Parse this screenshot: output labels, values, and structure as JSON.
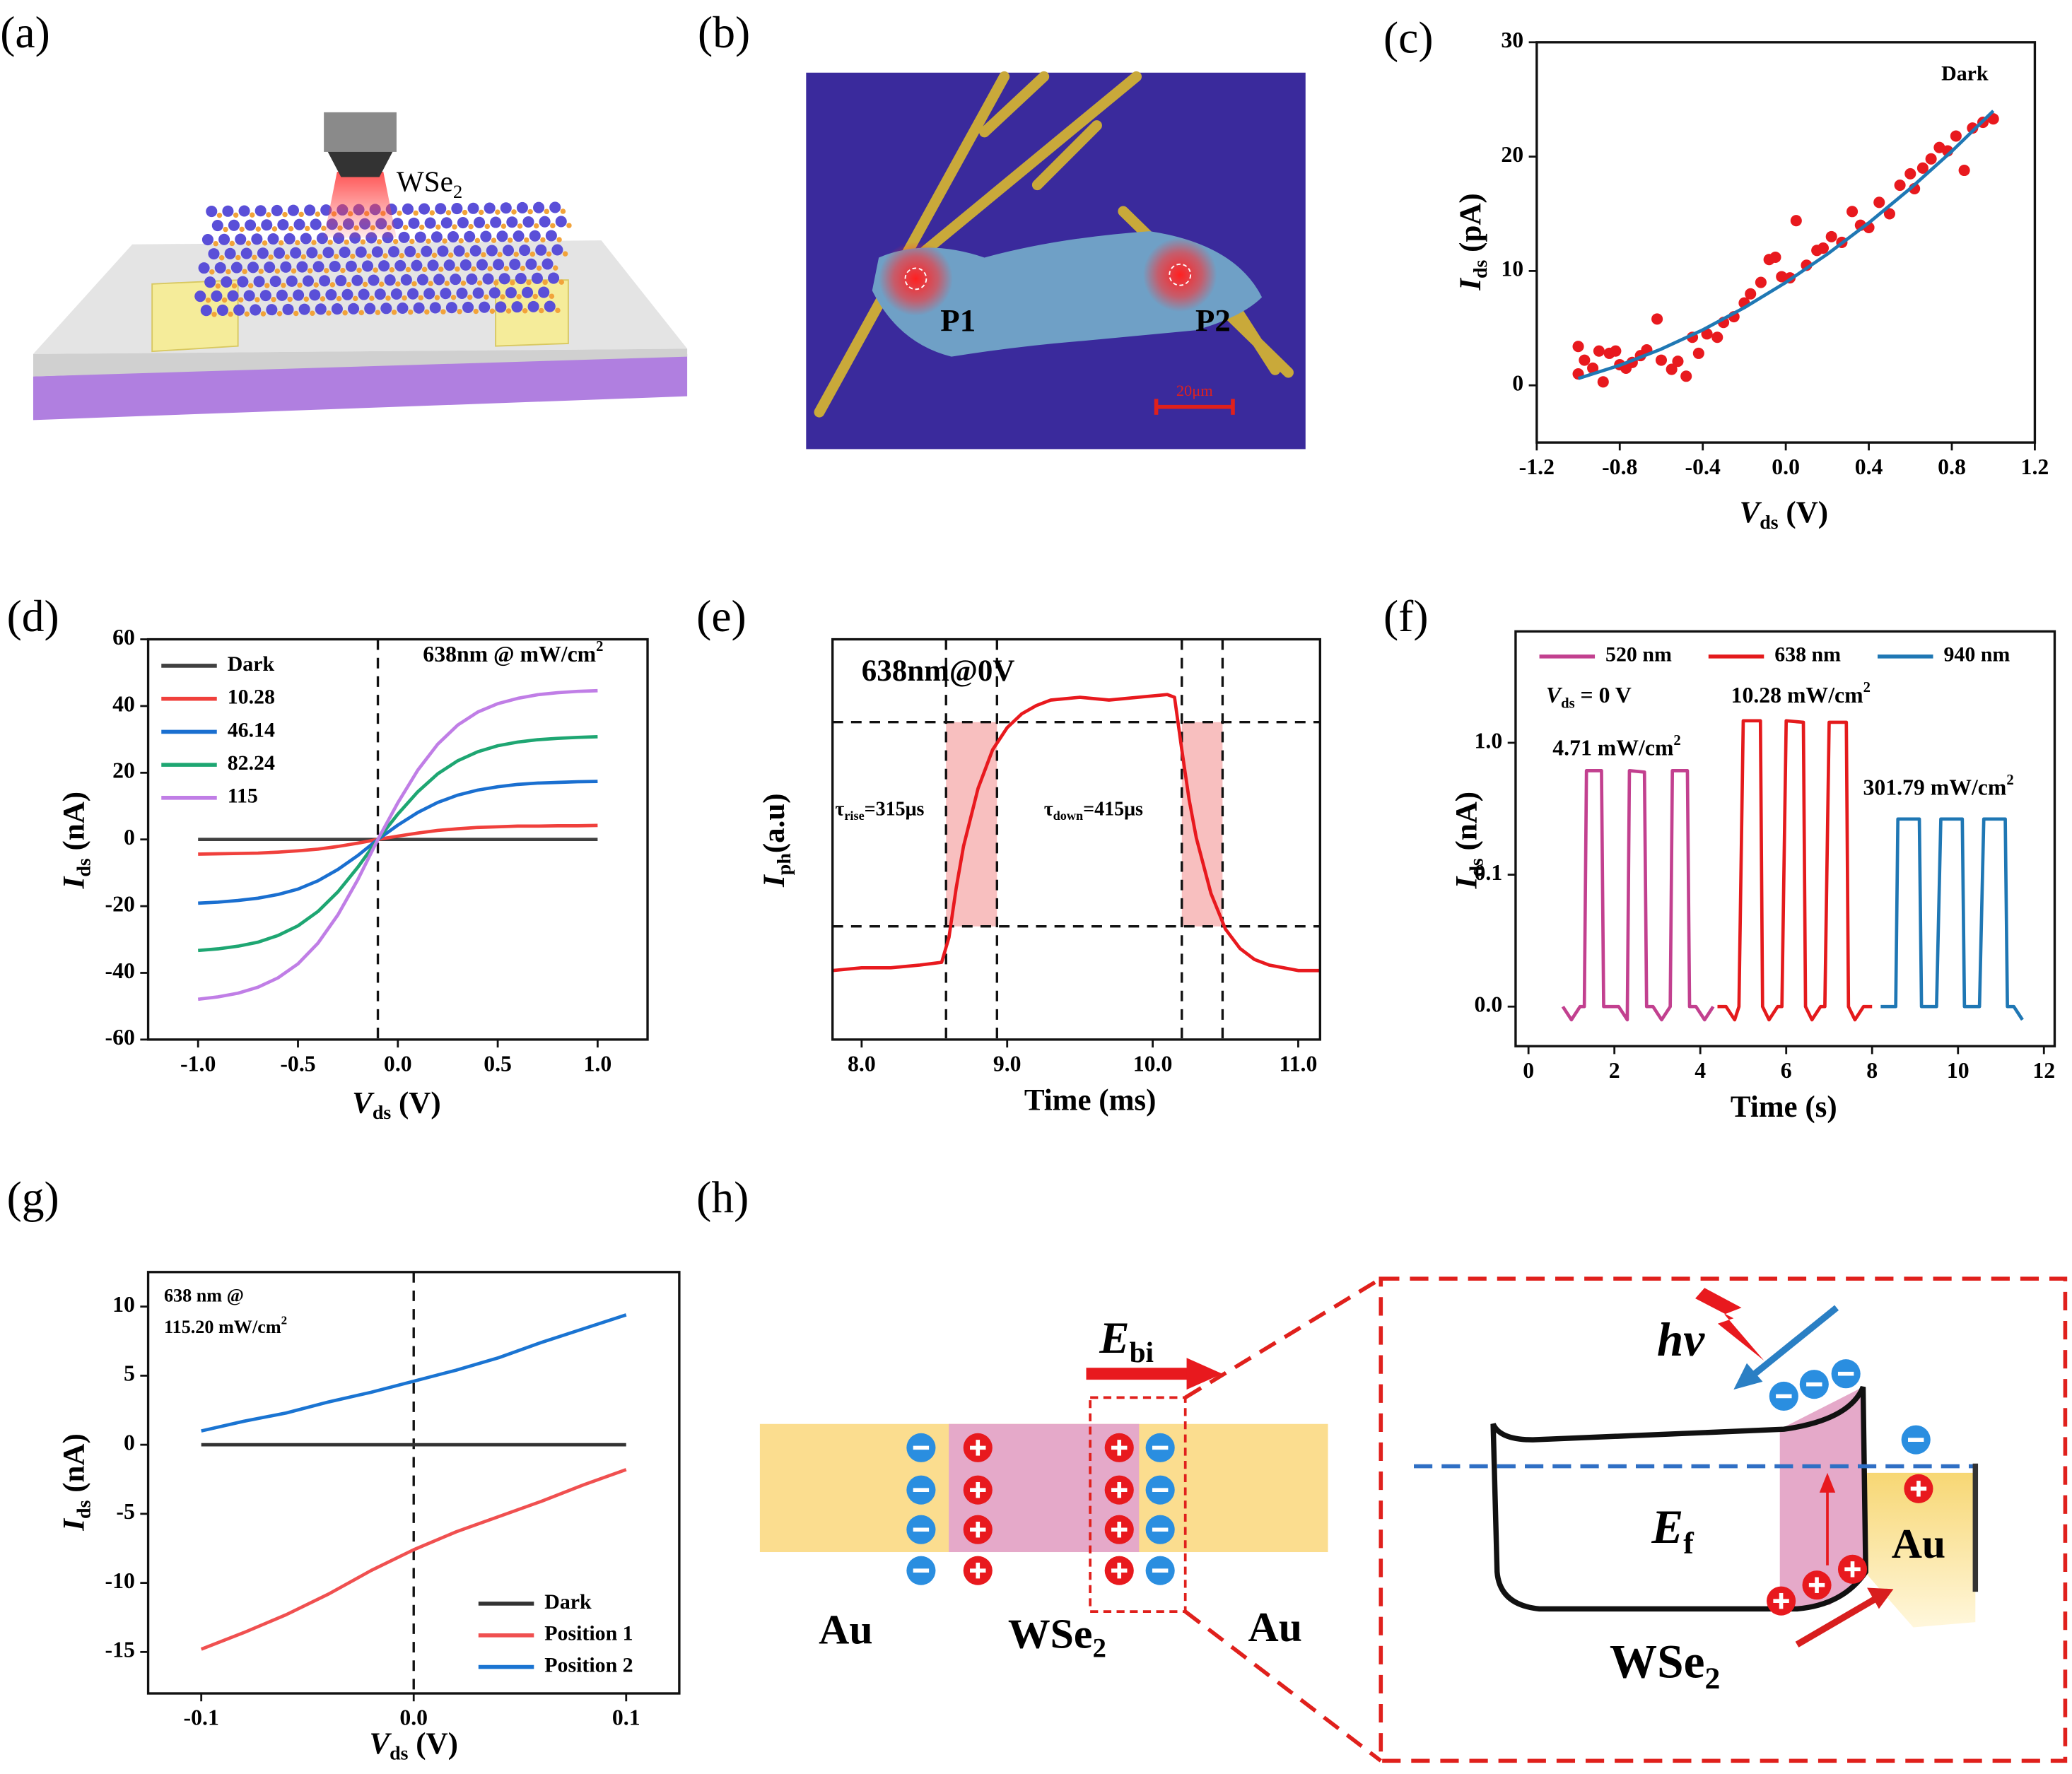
{
  "panel_labels": [
    "(a)",
    "(b)",
    "(c)",
    "(d)",
    "(e)",
    "(f)",
    "(g)",
    "(h)"
  ],
  "diagram_a": {
    "material": [
      {
        "text": "WSe"
      },
      {
        "text": "2",
        "sub": true
      }
    ]
  },
  "diagram_b": {
    "spot_1": "P1",
    "spot_2": "P2",
    "scale_bar": "20μm"
  },
  "diagram_h": {
    "field": [
      {
        "text": "E",
        "italic": true
      },
      {
        "text": "bi",
        "sub": true
      }
    ],
    "left_metal": "Au",
    "channel": [
      {
        "text": "WSe"
      },
      {
        "text": "2",
        "sub": true
      }
    ],
    "right_metal": "Au",
    "photon": "hv",
    "fermi": [
      {
        "text": "E",
        "italic": true
      },
      {
        "text": "f",
        "sub": true
      }
    ],
    "contact": "Au",
    "semiconductor": [
      {
        "text": "WSe"
      },
      {
        "text": "2",
        "sub": true
      }
    ]
  },
  "chart_data": [
    {
      "type": "scatter",
      "xlabel": [
        {
          "text": "V",
          "italic": true
        },
        {
          "text": "ds",
          "sub": true
        },
        {
          "text": " (V)"
        }
      ],
      "ylabel": [
        {
          "text": "I",
          "italic": true
        },
        {
          "text": "ds",
          "sub": true
        },
        {
          "text": " (pA)"
        }
      ],
      "xlim": [
        -1.2,
        1.2
      ],
      "xticks": [
        -1.2,
        -0.8,
        -0.4,
        {
          "value": 0,
          "label": "0.0"
        },
        0.4,
        0.8,
        1.2
      ],
      "ylim": [
        -5,
        30
      ],
      "yticks": [
        0,
        10,
        20,
        30
      ],
      "annotations": [
        [
          {
            "text": "Dark"
          }
        ]
      ],
      "series": [
        {
          "color": "#e8191e",
          "x": [
            -1.0,
            -1.0,
            -0.97,
            -0.93,
            -0.9,
            -0.88,
            -0.85,
            -0.82,
            -0.8,
            -0.77,
            -0.74,
            -0.7,
            -0.67,
            -0.62,
            -0.6,
            -0.55,
            -0.52,
            -0.48,
            -0.45,
            -0.42,
            -0.38,
            -0.33,
            -0.3,
            -0.25,
            -0.2,
            -0.17,
            -0.12,
            -0.08,
            -0.05,
            -0.02,
            0.02,
            0.05,
            0.1,
            0.15,
            0.18,
            0.22,
            0.27,
            0.32,
            0.36,
            0.4,
            0.45,
            0.5,
            0.55,
            0.6,
            0.62,
            0.66,
            0.7,
            0.74,
            0.78,
            0.82,
            0.86,
            0.9,
            0.95,
            1.0
          ],
          "values": [
            3.4,
            1.0,
            2.2,
            1.5,
            3.0,
            0.3,
            2.8,
            3.0,
            1.8,
            1.5,
            2.0,
            2.6,
            3.1,
            5.8,
            2.2,
            1.4,
            2.1,
            0.8,
            4.2,
            2.8,
            4.5,
            4.2,
            5.5,
            6.0,
            7.2,
            8.0,
            9.0,
            11.0,
            11.2,
            9.5,
            9.4,
            14.4,
            10.5,
            11.8,
            12.0,
            13.0,
            12.5,
            15.2,
            14.0,
            13.8,
            16.0,
            15.0,
            17.5,
            18.5,
            17.2,
            19.0,
            19.8,
            20.8,
            20.5,
            21.8,
            18.8,
            22.5,
            23.0,
            23.3
          ]
        },
        {
          "color": "#1f78b4",
          "style": "line",
          "x": [
            -1.0,
            -0.8,
            -0.6,
            -0.4,
            -0.2,
            0.0,
            0.2,
            0.4,
            0.6,
            0.8,
            1.0
          ],
          "values": [
            0.6,
            1.75,
            3.17,
            4.85,
            6.79,
            9.0,
            11.47,
            14.21,
            17.21,
            20.47,
            24.0
          ]
        }
      ]
    },
    {
      "type": "line",
      "xlabel": [
        {
          "text": "V",
          "italic": true
        },
        {
          "text": "ds",
          "sub": true
        },
        {
          "text": " (V)"
        }
      ],
      "ylabel": [
        {
          "text": "I",
          "italic": true
        },
        {
          "text": "ds",
          "sub": true
        },
        {
          "text": " (nA)"
        }
      ],
      "xlim": [
        -1.25,
        1.25
      ],
      "xticks": [
        {
          "value": -1,
          "label": "-1.0"
        },
        -0.5,
        {
          "value": 0,
          "label": "0.0"
        },
        0.5,
        {
          "value": 1,
          "label": "1.0"
        }
      ],
      "ylim": [
        -60,
        60
      ],
      "yticks": [
        -60,
        -40,
        -20,
        0,
        20,
        40,
        60
      ],
      "vlines": [
        -0.1
      ],
      "legend": "upper left",
      "annotations": [
        [
          {
            "text": "638nm @ mW/cm"
          },
          {
            "text": "2",
            "sup": true
          }
        ]
      ],
      "x": [
        -1.0,
        -0.9,
        -0.8,
        -0.7,
        -0.6,
        -0.5,
        -0.4,
        -0.3,
        -0.2,
        -0.1,
        0.0,
        0.1,
        0.2,
        0.3,
        0.4,
        0.5,
        0.6,
        0.7,
        0.8,
        0.9,
        1.0
      ],
      "series": [
        {
          "name": "Dark",
          "color": "#404040",
          "values": [
            0,
            0,
            0,
            0,
            0,
            0,
            0,
            0,
            0,
            0,
            0,
            0,
            0,
            0,
            0,
            0,
            0,
            0,
            0,
            0,
            0
          ]
        },
        {
          "name": "10.28",
          "color": "#f0403c",
          "values": [
            -4.4,
            -4.3,
            -4.2,
            -4.1,
            -3.8,
            -3.4,
            -2.9,
            -2.1,
            -1.1,
            0,
            1.0,
            1.9,
            2.7,
            3.2,
            3.6,
            3.8,
            4.0,
            4.0,
            4.1,
            4.1,
            4.2
          ]
        },
        {
          "name": "46.14",
          "color": "#1a6fd0",
          "values": [
            -19.1,
            -18.8,
            -18.3,
            -17.6,
            -16.5,
            -14.9,
            -12.4,
            -9.0,
            -4.8,
            0,
            4.3,
            8.1,
            11.1,
            13.3,
            14.8,
            15.8,
            16.5,
            16.9,
            17.1,
            17.3,
            17.4
          ]
        },
        {
          "name": "82.24",
          "color": "#1ea672",
          "values": [
            -33.3,
            -32.8,
            -32.0,
            -30.8,
            -28.8,
            -25.9,
            -21.6,
            -15.7,
            -8.3,
            0,
            7.6,
            14.3,
            19.7,
            23.6,
            26.3,
            28.1,
            29.2,
            29.9,
            30.3,
            30.6,
            30.8
          ]
        },
        {
          "name": "115",
          "color": "#c07ee6",
          "values": [
            -47.9,
            -47.2,
            -46.1,
            -44.3,
            -41.5,
            -37.3,
            -31.1,
            -22.6,
            -12.0,
            0,
            11.0,
            20.8,
            28.6,
            34.3,
            38.2,
            40.7,
            42.3,
            43.4,
            44.0,
            44.4,
            44.6
          ]
        }
      ]
    },
    {
      "type": "line",
      "xlabel": [
        {
          "text": "Time (ms)"
        }
      ],
      "ylabel": [
        {
          "text": "I",
          "italic": true
        },
        {
          "text": "ph",
          "sub": true
        },
        {
          "text": "(a.u)"
        }
      ],
      "xlim": [
        7.8,
        11.15
      ],
      "xticks": [
        {
          "value": 8,
          "label": "8.0"
        },
        {
          "value": 9,
          "label": "9.0"
        },
        {
          "value": 10,
          "label": "10.0"
        },
        {
          "value": 11,
          "label": "11.0"
        }
      ],
      "ylim": [
        -0.25,
        1.2
      ],
      "vlines": [
        8.58,
        8.93,
        10.2,
        10.48
      ],
      "hlines": [
        0.16,
        0.9
      ],
      "shaded": [
        [
          8.58,
          8.93
        ],
        [
          10.2,
          10.48
        ]
      ],
      "annotations": [
        [
          {
            "text": "638nm@0V"
          }
        ],
        [
          {
            "text": "τ"
          },
          {
            "text": "rise",
            "sub": true
          },
          {
            "text": "=315μs"
          }
        ],
        [
          {
            "text": "τ"
          },
          {
            "text": "down",
            "sub": true
          },
          {
            "text": "=415μs"
          }
        ]
      ],
      "series": [
        {
          "color": "#e8191e",
          "x": [
            7.8,
            8.0,
            8.2,
            8.4,
            8.55,
            8.6,
            8.65,
            8.7,
            8.8,
            8.9,
            9.0,
            9.1,
            9.2,
            9.3,
            9.5,
            9.7,
            9.9,
            10.1,
            10.15,
            10.2,
            10.25,
            10.3,
            10.4,
            10.5,
            10.6,
            10.7,
            10.8,
            11.0,
            11.15
          ],
          "values": [
            0,
            0.01,
            0.01,
            0.02,
            0.03,
            0.12,
            0.3,
            0.45,
            0.66,
            0.8,
            0.88,
            0.93,
            0.96,
            0.98,
            0.99,
            0.98,
            0.99,
            1.0,
            0.99,
            0.8,
            0.62,
            0.48,
            0.28,
            0.15,
            0.08,
            0.04,
            0.02,
            0,
            0
          ]
        }
      ]
    },
    {
      "type": "line",
      "xlabel": [
        {
          "text": "Time (s)"
        }
      ],
      "ylabel": [
        {
          "text": "I",
          "italic": true
        },
        {
          "text": "ds",
          "sub": true
        },
        {
          "text": " (nA)"
        }
      ],
      "xlim": [
        -0.3,
        12.25
      ],
      "xticks": [
        0,
        2,
        4,
        6,
        8,
        10,
        12
      ],
      "ylim": [
        -0.03,
        1.76
      ],
      "yscale": "segmented",
      "yticks": [
        {
          "value": 0,
          "label": "0.0"
        },
        0.1,
        {
          "value": 1,
          "label": "1.0"
        }
      ],
      "legend": "top",
      "annotations": [
        [
          {
            "text": "V",
            "italic": true
          },
          {
            "text": "ds",
            "sub": true
          },
          {
            "text": " = 0 V"
          }
        ],
        [
          {
            "text": "4.71 mW/cm"
          },
          {
            "text": "2",
            "sup": true
          }
        ],
        [
          {
            "text": "10.28 mW/cm"
          },
          {
            "text": "2",
            "sup": true
          }
        ],
        [
          {
            "text": "301.79 mW/cm"
          },
          {
            "text": "2",
            "sup": true
          }
        ]
      ],
      "series": [
        {
          "name": "520 nm",
          "color": "#c2408f",
          "x": [
            0.8,
            1.0,
            1.2,
            1.3,
            1.35,
            1.7,
            1.75,
            1.9,
            2.1,
            2.3,
            2.35,
            2.7,
            2.75,
            2.9,
            3.1,
            3.3,
            3.35,
            3.7,
            3.75,
            3.9,
            4.1,
            4.3
          ],
          "values": [
            0,
            -0.01,
            0,
            0,
            0.81,
            0.81,
            0,
            0,
            0,
            -0.01,
            0.81,
            0.8,
            0,
            0,
            -0.01,
            0,
            0.81,
            0.81,
            0,
            0,
            -0.01,
            0
          ]
        },
        {
          "name": "638 nm",
          "color": "#e41a1c",
          "x": [
            4.4,
            4.6,
            4.8,
            4.9,
            5.0,
            5.4,
            5.45,
            5.6,
            5.8,
            5.9,
            6.0,
            6.4,
            6.45,
            6.6,
            6.8,
            6.9,
            7.0,
            7.4,
            7.45,
            7.6,
            7.8,
            8.0
          ],
          "values": [
            0,
            0,
            -0.01,
            0,
            1.15,
            1.15,
            0,
            -0.01,
            0,
            0,
            1.15,
            1.14,
            0,
            -0.01,
            0,
            0,
            1.14,
            1.14,
            0,
            -0.01,
            0,
            0
          ]
        },
        {
          "name": "940 nm",
          "color": "#1f77b4",
          "x": [
            8.2,
            8.4,
            8.55,
            8.6,
            9.1,
            9.15,
            9.3,
            9.5,
            9.6,
            10.1,
            10.15,
            10.3,
            10.5,
            10.6,
            11.1,
            11.15,
            11.3,
            11.5
          ],
          "values": [
            0,
            0,
            0,
            0.48,
            0.48,
            0,
            0,
            0,
            0.48,
            0.48,
            0,
            0,
            0,
            0.48,
            0.48,
            0,
            0,
            -0.01
          ]
        }
      ]
    },
    {
      "type": "line",
      "xlabel": [
        {
          "text": "V",
          "italic": true
        },
        {
          "text": "ds",
          "sub": true
        },
        {
          "text": " (V)"
        }
      ],
      "ylabel": [
        {
          "text": "I",
          "italic": true
        },
        {
          "text": "ds",
          "sub": true
        },
        {
          "text": " (nA)"
        }
      ],
      "xlim": [
        -0.125,
        0.125
      ],
      "xticks": [
        -0.1,
        {
          "value": 0,
          "label": "0.0"
        },
        0.1
      ],
      "ylim": [
        -18,
        12.5
      ],
      "yticks": [
        -15,
        -10,
        -5,
        0,
        5,
        10
      ],
      "vlines": [
        0
      ],
      "legend": "lower right",
      "annotations": [
        [
          {
            "text": "638 nm @"
          }
        ],
        [
          {
            "text": "115.20 mW/cm"
          },
          {
            "text": "2",
            "sup": true
          }
        ]
      ],
      "x": [
        -0.1,
        -0.08,
        -0.06,
        -0.04,
        -0.02,
        0.0,
        0.02,
        0.04,
        0.06,
        0.08,
        0.1
      ],
      "series": [
        {
          "name": "Dark",
          "color": "#333333",
          "values": [
            0,
            0,
            0,
            0,
            0,
            0,
            0,
            0,
            0,
            0,
            0
          ]
        },
        {
          "name": "Position 1",
          "color": "#f05050",
          "values": [
            -14.8,
            -13.6,
            -12.3,
            -10.8,
            -9.1,
            -7.6,
            -6.3,
            -5.2,
            -4.1,
            -2.9,
            -1.8
          ]
        },
        {
          "name": "Position 2",
          "color": "#1a74d2",
          "values": [
            1.0,
            1.7,
            2.3,
            3.1,
            3.8,
            4.6,
            5.4,
            6.3,
            7.4,
            8.4,
            9.4
          ]
        }
      ]
    }
  ]
}
